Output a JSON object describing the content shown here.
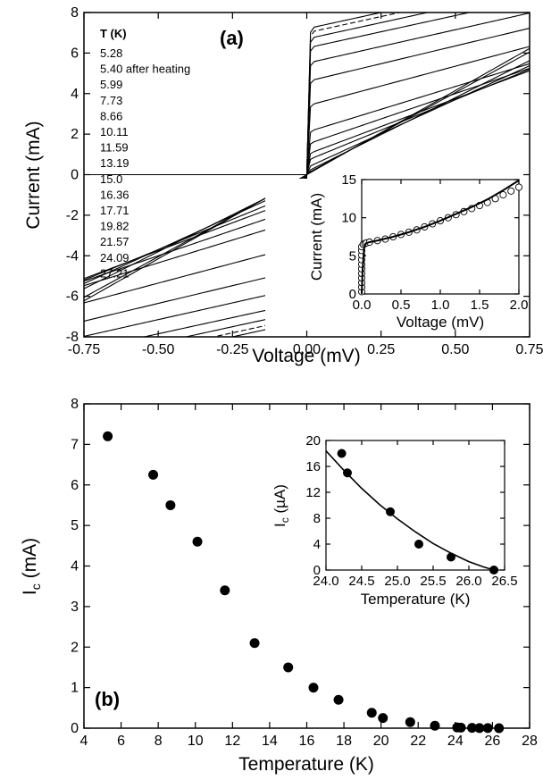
{
  "chart_data": [
    {
      "id": "panel-a",
      "type": "line",
      "panel_label": "(a)",
      "xlabel": "Voltage  (mV)",
      "ylabel": "Current  (mA)",
      "xlim": [
        -0.75,
        0.75
      ],
      "ylim": [
        -8,
        8
      ],
      "xticks": [
        "-0.75",
        "-0.50",
        "-0.25",
        "0.00",
        "0.25",
        "0.50",
        "0.75"
      ],
      "xtick_values": [
        -0.75,
        -0.5,
        -0.25,
        0,
        0.25,
        0.5,
        0.75
      ],
      "yticks": [
        "-8",
        "-6",
        "-4",
        "-2",
        "0",
        "2",
        "4",
        "6",
        "8"
      ],
      "ytick_values": [
        -8,
        -6,
        -4,
        -2,
        0,
        2,
        4,
        6,
        8
      ],
      "legend_title": "T (K)",
      "legend_placement": "top-left",
      "series": [
        {
          "name": "5.28",
          "ic": 7.2,
          "slope": 3.2
        },
        {
          "name": "5.40 after heating",
          "ic": 7.0,
          "slope": 3.2,
          "style": "dashed"
        },
        {
          "name": "5.99",
          "ic": 6.7,
          "slope": 3.2
        },
        {
          "name": "7.73",
          "ic": 6.25,
          "slope": 3.2
        },
        {
          "name": "8.66",
          "ic": 5.5,
          "slope": 3.3
        },
        {
          "name": "10.11",
          "ic": 4.6,
          "slope": 3.5
        },
        {
          "name": "11.59",
          "ic": 3.4,
          "slope": 3.9
        },
        {
          "name": "13.19",
          "ic": 2.1,
          "slope": 4.5
        },
        {
          "name": "15.0",
          "ic": 1.5,
          "slope": 5.0
        },
        {
          "name": "16.36",
          "ic": 1.0,
          "slope": 5.5
        },
        {
          "name": "17.71",
          "ic": 0.7,
          "slope": 6.0
        },
        {
          "name": "19.82",
          "ic": 0.35,
          "slope": 6.7
        },
        {
          "name": "21.57",
          "ic": 0.15,
          "slope": 7.3
        },
        {
          "name": "24.09",
          "ic": 0.05,
          "slope": 8.0
        },
        {
          "name": "27.21",
          "ic": 0.0,
          "slope": 8.3
        }
      ],
      "inset": {
        "xlabel": "Voltage  (mV)",
        "ylabel": "Current  (mA)",
        "xlim": [
          0,
          2.0
        ],
        "ylim": [
          0,
          15
        ],
        "xticks": [
          "0.0",
          "0.5",
          "1.0",
          "1.5",
          "2.0"
        ],
        "xtick_values": [
          0,
          0.5,
          1.0,
          1.5,
          2.0
        ],
        "yticks": [
          "0",
          "5",
          "10",
          "15"
        ],
        "ytick_values": [
          0,
          5,
          10,
          15
        ],
        "line": {
          "x": [
            0.0,
            0.01,
            0.03,
            0.05,
            0.07,
            0.1,
            0.2,
            0.4,
            0.6,
            0.8,
            1.0,
            1.2,
            1.4,
            1.6,
            1.8,
            2.0
          ],
          "y": [
            0.0,
            3.0,
            6.0,
            6.6,
            6.7,
            6.8,
            7.0,
            7.5,
            8.1,
            8.8,
            9.6,
            10.5,
            11.4,
            12.4,
            13.6,
            14.9
          ]
        },
        "markers": {
          "x": [
            0.0,
            0.0,
            0.0,
            0.0,
            0.0,
            0.0,
            0.0,
            0.0,
            0.0,
            0.0,
            0.0,
            0.02,
            0.04,
            0.06,
            0.1,
            0.2,
            0.3,
            0.4,
            0.5,
            0.6,
            0.7,
            0.8,
            0.9,
            1.0,
            1.1,
            1.2,
            1.3,
            1.4,
            1.5,
            1.6,
            1.7,
            1.8,
            1.9,
            2.0
          ],
          "y": [
            0.3,
            0.9,
            1.5,
            2.1,
            2.7,
            3.3,
            3.9,
            4.5,
            5.1,
            5.7,
            6.2,
            6.5,
            6.6,
            6.7,
            6.8,
            7.0,
            7.2,
            7.5,
            7.8,
            8.1,
            8.4,
            8.8,
            9.2,
            9.6,
            10.0,
            10.4,
            10.8,
            11.2,
            11.6,
            12.0,
            12.5,
            13.0,
            13.5,
            14.0
          ]
        }
      }
    },
    {
      "id": "panel-b",
      "type": "scatter",
      "panel_label": "(b)",
      "xlabel": "Temperature  (K)",
      "ylabel": "I",
      "ylabel_sub": "c",
      "ylabel_unit": "  (mA)",
      "xlim": [
        4,
        28
      ],
      "ylim": [
        0,
        8
      ],
      "xticks": [
        "4",
        "6",
        "8",
        "10",
        "12",
        "14",
        "16",
        "18",
        "20",
        "22",
        "24",
        "26",
        "28"
      ],
      "xtick_values": [
        4,
        6,
        8,
        10,
        12,
        14,
        16,
        18,
        20,
        22,
        24,
        26,
        28
      ],
      "yticks": [
        "0",
        "1",
        "2",
        "3",
        "4",
        "5",
        "6",
        "7",
        "8"
      ],
      "ytick_values": [
        0,
        1,
        2,
        3,
        4,
        5,
        6,
        7,
        8
      ],
      "x": [
        5.28,
        7.73,
        8.66,
        10.11,
        11.59,
        13.19,
        15.0,
        16.36,
        17.71,
        19.5,
        20.1,
        21.57,
        22.9,
        24.1,
        24.3,
        24.9,
        25.3,
        25.75,
        26.35
      ],
      "y": [
        7.2,
        6.25,
        5.5,
        4.6,
        3.4,
        2.1,
        1.5,
        1.0,
        0.7,
        0.38,
        0.25,
        0.15,
        0.06,
        0.018,
        0.015,
        0.009,
        0.004,
        0.002,
        0.0
      ],
      "inset": {
        "xlabel": "Temperature  (K)",
        "ylabel": "I",
        "ylabel_sub": "c",
        "ylabel_unit": "  (µA)",
        "xlim": [
          24.0,
          26.5
        ],
        "ylim": [
          0,
          20
        ],
        "xticks": [
          "24.0",
          "24.5",
          "25.0",
          "25.5",
          "26.0",
          "26.5"
        ],
        "xtick_values": [
          24.0,
          24.5,
          25.0,
          25.5,
          26.0,
          26.5
        ],
        "yticks": [
          "0",
          "4",
          "8",
          "12",
          "16",
          "20"
        ],
        "ytick_values": [
          0,
          4,
          8,
          12,
          16,
          20
        ],
        "points": {
          "x": [
            24.22,
            24.3,
            24.9,
            25.3,
            25.75,
            26.35
          ],
          "y": [
            18.0,
            15.0,
            9.0,
            4.0,
            2.0,
            0.0
          ]
        },
        "fit": {
          "x": [
            24.0,
            24.25,
            24.5,
            24.75,
            25.0,
            25.25,
            25.5,
            25.75,
            26.0,
            26.2,
            26.35
          ],
          "y": [
            18.4,
            15.4,
            12.6,
            10.1,
            7.9,
            5.9,
            4.1,
            2.6,
            1.3,
            0.5,
            0.0
          ]
        }
      }
    }
  ]
}
